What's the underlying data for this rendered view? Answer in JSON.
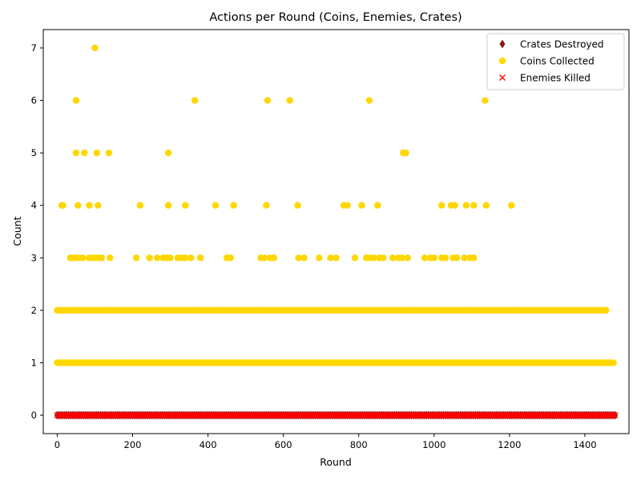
{
  "chart_data": {
    "type": "scatter",
    "title": "Actions per Round (Coins, Enemies, Crates)",
    "xlabel": "Round",
    "ylabel": "Count",
    "xlim": [
      -37,
      1517
    ],
    "ylim": [
      -0.35,
      7.35
    ],
    "xticks": [
      0,
      200,
      400,
      600,
      800,
      1000,
      1200,
      1400
    ],
    "yticks": [
      0,
      1,
      2,
      3,
      4,
      5,
      6,
      7
    ],
    "grid": false,
    "legend_position": "top-right",
    "round_range": [
      0,
      1480
    ],
    "series": [
      {
        "name": "Crates Destroyed",
        "marker": "diamond",
        "color": "#8b1a1a",
        "y_constant": 0,
        "x_step": 5
      },
      {
        "name": "Coins Collected",
        "marker": "circle",
        "color": "#ffd700",
        "points": [
          [
            100,
            7
          ],
          [
            50,
            6
          ],
          [
            365,
            6
          ],
          [
            558,
            6
          ],
          [
            617,
            6
          ],
          [
            828,
            6
          ],
          [
            1135,
            6
          ],
          [
            50,
            5
          ],
          [
            72,
            5
          ],
          [
            105,
            5
          ],
          [
            137,
            5
          ],
          [
            295,
            5
          ],
          [
            918,
            5
          ],
          [
            925,
            5
          ],
          [
            12,
            4
          ],
          [
            15,
            4
          ],
          [
            55,
            4
          ],
          [
            85,
            4
          ],
          [
            108,
            4
          ],
          [
            220,
            4
          ],
          [
            295,
            4
          ],
          [
            340,
            4
          ],
          [
            420,
            4
          ],
          [
            468,
            4
          ],
          [
            555,
            4
          ],
          [
            638,
            4
          ],
          [
            760,
            4
          ],
          [
            770,
            4
          ],
          [
            808,
            4
          ],
          [
            850,
            4
          ],
          [
            1020,
            4
          ],
          [
            1045,
            4
          ],
          [
            1055,
            4
          ],
          [
            1085,
            4
          ],
          [
            1105,
            4
          ],
          [
            1138,
            4
          ],
          [
            1205,
            4
          ],
          [
            35,
            3
          ],
          [
            40,
            3
          ],
          [
            50,
            3
          ],
          [
            58,
            3
          ],
          [
            68,
            3
          ],
          [
            85,
            3
          ],
          [
            95,
            3
          ],
          [
            100,
            3
          ],
          [
            108,
            3
          ],
          [
            118,
            3
          ],
          [
            140,
            3
          ],
          [
            210,
            3
          ],
          [
            245,
            3
          ],
          [
            265,
            3
          ],
          [
            280,
            3
          ],
          [
            290,
            3
          ],
          [
            300,
            3
          ],
          [
            320,
            3
          ],
          [
            330,
            3
          ],
          [
            340,
            3
          ],
          [
            355,
            3
          ],
          [
            380,
            3
          ],
          [
            450,
            3
          ],
          [
            460,
            3
          ],
          [
            540,
            3
          ],
          [
            550,
            3
          ],
          [
            565,
            3
          ],
          [
            575,
            3
          ],
          [
            640,
            3
          ],
          [
            655,
            3
          ],
          [
            695,
            3
          ],
          [
            725,
            3
          ],
          [
            740,
            3
          ],
          [
            790,
            3
          ],
          [
            820,
            3
          ],
          [
            828,
            3
          ],
          [
            840,
            3
          ],
          [
            855,
            3
          ],
          [
            865,
            3
          ],
          [
            890,
            3
          ],
          [
            905,
            3
          ],
          [
            915,
            3
          ],
          [
            930,
            3
          ],
          [
            975,
            3
          ],
          [
            990,
            3
          ],
          [
            1000,
            3
          ],
          [
            1020,
            3
          ],
          [
            1030,
            3
          ],
          [
            1050,
            3
          ],
          [
            1060,
            3
          ],
          [
            1080,
            3
          ],
          [
            1095,
            3
          ],
          [
            1105,
            3
          ]
        ],
        "dense_rows": [
          {
            "y": 2,
            "x_from": 0,
            "x_to": 1460,
            "step": 7
          },
          {
            "y": 1,
            "x_from": 0,
            "x_to": 1480,
            "step": 6
          }
        ]
      },
      {
        "name": "Enemies Killed",
        "marker": "x",
        "color": "#ff0000",
        "y_constant": 0,
        "x_step": 4
      }
    ]
  }
}
